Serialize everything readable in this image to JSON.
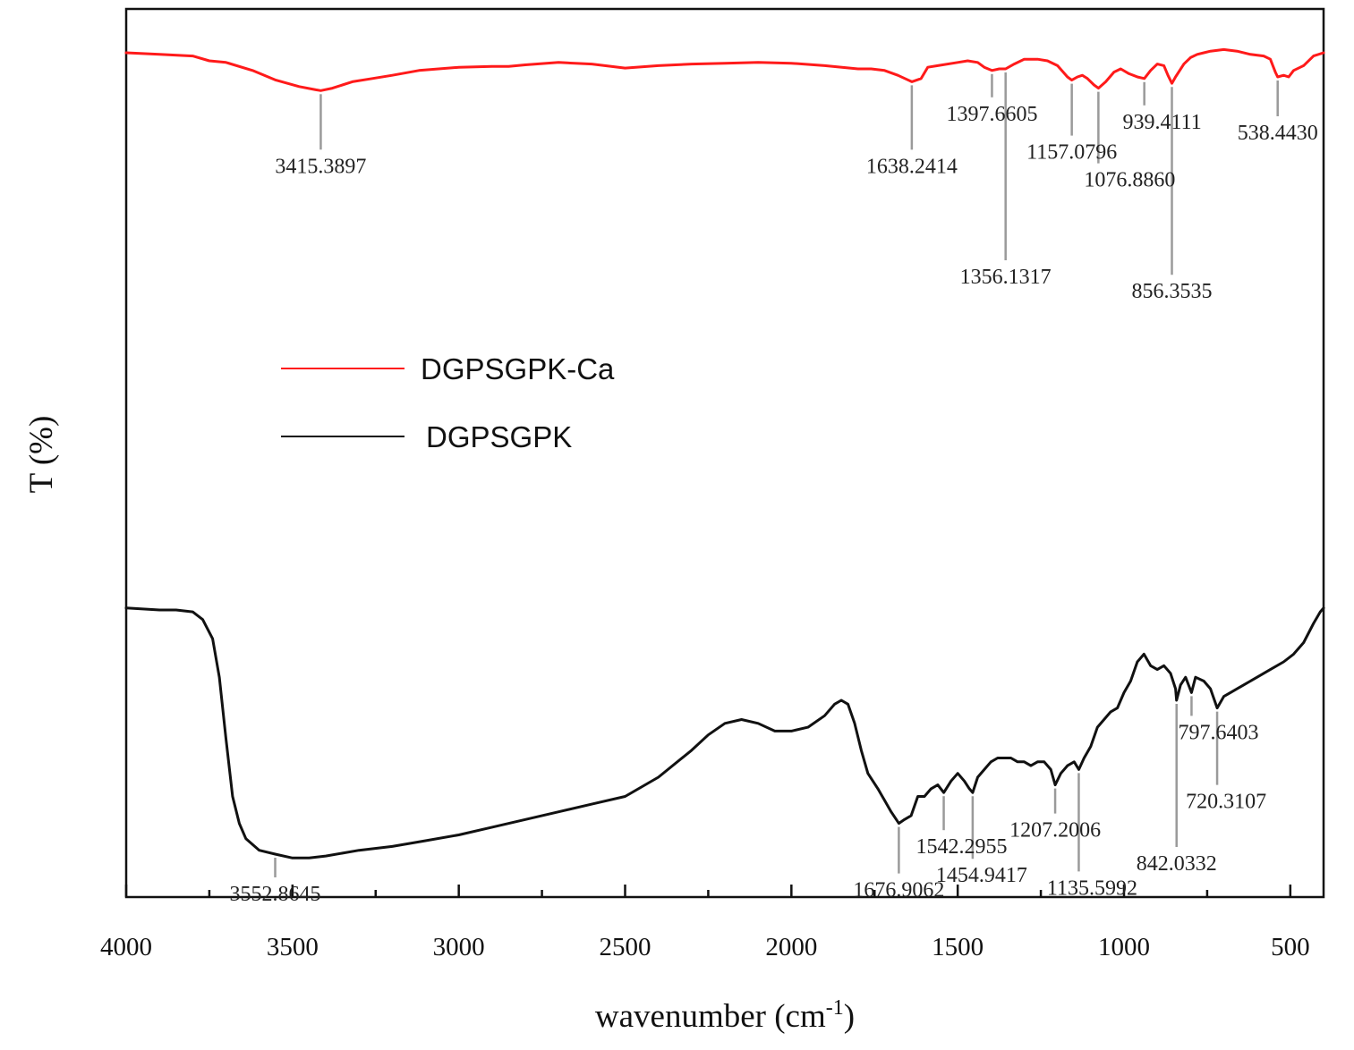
{
  "chart_data": {
    "type": "line",
    "xlabel": "wavenumber (cm",
    "xlabel_sup": "-1",
    "xlabel_close": ")",
    "ylabel": "T (%)",
    "xlim": [
      4000,
      400
    ],
    "x_reversed": true,
    "xticks": [
      4000,
      3500,
      3000,
      2500,
      2000,
      1500,
      1000,
      500
    ],
    "y_units": "relative transmittance (offset traces), 0-100 scale",
    "legend": {
      "position": "middle-left"
    },
    "series": [
      {
        "name": "DGPSGPK-Ca",
        "color": "#ff1a1a",
        "points": [
          [
            4000,
            95
          ],
          [
            3900,
            94
          ],
          [
            3800,
            93
          ],
          [
            3750,
            90
          ],
          [
            3700,
            89
          ],
          [
            3620,
            84
          ],
          [
            3550,
            78
          ],
          [
            3480,
            74
          ],
          [
            3430,
            72
          ],
          [
            3415,
            71.5
          ],
          [
            3380,
            73
          ],
          [
            3320,
            77
          ],
          [
            3260,
            79
          ],
          [
            3200,
            81
          ],
          [
            3120,
            84
          ],
          [
            3000,
            86
          ],
          [
            2900,
            86.5
          ],
          [
            2850,
            86.5
          ],
          [
            2800,
            87.5
          ],
          [
            2700,
            89
          ],
          [
            2600,
            88
          ],
          [
            2500,
            85.5
          ],
          [
            2400,
            87
          ],
          [
            2300,
            88
          ],
          [
            2200,
            88.5
          ],
          [
            2100,
            89
          ],
          [
            2000,
            88.5
          ],
          [
            1900,
            87
          ],
          [
            1800,
            85
          ],
          [
            1760,
            85
          ],
          [
            1720,
            84
          ],
          [
            1680,
            81
          ],
          [
            1638,
            77
          ],
          [
            1610,
            79
          ],
          [
            1590,
            86
          ],
          [
            1560,
            87
          ],
          [
            1500,
            89
          ],
          [
            1470,
            90
          ],
          [
            1440,
            89
          ],
          [
            1420,
            86
          ],
          [
            1397,
            84
          ],
          [
            1375,
            85
          ],
          [
            1356,
            85
          ],
          [
            1330,
            88
          ],
          [
            1300,
            91
          ],
          [
            1260,
            91
          ],
          [
            1230,
            90
          ],
          [
            1200,
            87
          ],
          [
            1170,
            80
          ],
          [
            1157,
            78
          ],
          [
            1140,
            80
          ],
          [
            1125,
            81
          ],
          [
            1110,
            79
          ],
          [
            1090,
            75
          ],
          [
            1077,
            73
          ],
          [
            1055,
            77
          ],
          [
            1030,
            83
          ],
          [
            1010,
            85
          ],
          [
            985,
            82
          ],
          [
            960,
            80
          ],
          [
            939,
            79
          ],
          [
            920,
            84
          ],
          [
            900,
            88
          ],
          [
            880,
            87
          ],
          [
            868,
            81
          ],
          [
            856,
            76
          ],
          [
            845,
            80
          ],
          [
            820,
            88
          ],
          [
            800,
            92
          ],
          [
            780,
            94
          ],
          [
            760,
            95
          ],
          [
            740,
            96
          ],
          [
            700,
            97
          ],
          [
            660,
            96
          ],
          [
            620,
            94
          ],
          [
            580,
            93
          ],
          [
            560,
            91
          ],
          [
            545,
            83
          ],
          [
            538,
            80
          ],
          [
            520,
            81
          ],
          [
            505,
            80
          ],
          [
            490,
            84
          ],
          [
            470,
            86
          ],
          [
            460,
            87
          ],
          [
            430,
            93
          ],
          [
            400,
            95
          ]
        ]
      },
      {
        "name": "DGPSGPK",
        "color": "#111111",
        "points": [
          [
            4000,
            64
          ],
          [
            3900,
            63.5
          ],
          [
            3850,
            63.5
          ],
          [
            3800,
            63
          ],
          [
            3770,
            61
          ],
          [
            3740,
            56
          ],
          [
            3720,
            46
          ],
          [
            3700,
            30
          ],
          [
            3680,
            15
          ],
          [
            3660,
            8
          ],
          [
            3640,
            4
          ],
          [
            3600,
            1
          ],
          [
            3552,
            0
          ],
          [
            3500,
            -1
          ],
          [
            3450,
            -1
          ],
          [
            3400,
            -0.5
          ],
          [
            3300,
            1
          ],
          [
            3200,
            2
          ],
          [
            3100,
            3.5
          ],
          [
            3000,
            5
          ],
          [
            2900,
            7
          ],
          [
            2800,
            9
          ],
          [
            2700,
            11
          ],
          [
            2600,
            13
          ],
          [
            2500,
            15
          ],
          [
            2400,
            20
          ],
          [
            2300,
            27
          ],
          [
            2250,
            31
          ],
          [
            2200,
            34
          ],
          [
            2150,
            35
          ],
          [
            2100,
            34
          ],
          [
            2050,
            32
          ],
          [
            2000,
            32
          ],
          [
            1950,
            33
          ],
          [
            1900,
            36
          ],
          [
            1870,
            39
          ],
          [
            1850,
            40
          ],
          [
            1830,
            39
          ],
          [
            1810,
            34
          ],
          [
            1790,
            27
          ],
          [
            1770,
            21
          ],
          [
            1740,
            17
          ],
          [
            1720,
            14
          ],
          [
            1700,
            11
          ],
          [
            1677,
            8
          ],
          [
            1660,
            9
          ],
          [
            1640,
            10
          ],
          [
            1620,
            15
          ],
          [
            1600,
            15
          ],
          [
            1580,
            17
          ],
          [
            1560,
            18
          ],
          [
            1542,
            16
          ],
          [
            1520,
            19
          ],
          [
            1500,
            21
          ],
          [
            1480,
            19
          ],
          [
            1465,
            17
          ],
          [
            1455,
            16
          ],
          [
            1440,
            20
          ],
          [
            1420,
            22
          ],
          [
            1400,
            24
          ],
          [
            1380,
            25
          ],
          [
            1360,
            25
          ],
          [
            1340,
            25
          ],
          [
            1320,
            24
          ],
          [
            1300,
            24
          ],
          [
            1280,
            23
          ],
          [
            1260,
            24
          ],
          [
            1240,
            24
          ],
          [
            1220,
            22
          ],
          [
            1207,
            18
          ],
          [
            1190,
            21
          ],
          [
            1170,
            23
          ],
          [
            1150,
            24
          ],
          [
            1136,
            22
          ],
          [
            1120,
            25
          ],
          [
            1100,
            28
          ],
          [
            1080,
            33
          ],
          [
            1060,
            35
          ],
          [
            1040,
            37
          ],
          [
            1020,
            38
          ],
          [
            1000,
            42
          ],
          [
            980,
            45
          ],
          [
            960,
            50
          ],
          [
            940,
            52
          ],
          [
            920,
            49
          ],
          [
            900,
            48
          ],
          [
            880,
            49
          ],
          [
            860,
            47
          ],
          [
            845,
            43
          ],
          [
            842,
            40
          ],
          [
            830,
            44
          ],
          [
            815,
            46
          ],
          [
            797,
            42
          ],
          [
            785,
            46
          ],
          [
            760,
            45
          ],
          [
            740,
            43
          ],
          [
            720,
            38
          ],
          [
            700,
            41
          ],
          [
            680,
            42
          ],
          [
            660,
            43
          ],
          [
            640,
            44
          ],
          [
            600,
            46
          ],
          [
            560,
            48
          ],
          [
            520,
            50
          ],
          [
            490,
            52
          ],
          [
            460,
            55
          ],
          [
            430,
            60
          ],
          [
            410,
            63
          ],
          [
            400,
            64
          ]
        ]
      }
    ],
    "peak_annotations": [
      {
        "series": "DGPSGPK-Ca",
        "x": 3415,
        "label": "3415.3897",
        "text_position": "below"
      },
      {
        "series": "DGPSGPK-Ca",
        "x": 1638,
        "label": "1638.2414",
        "text_position": "below"
      },
      {
        "series": "DGPSGPK-Ca",
        "x": 1397,
        "label": "1397.6605",
        "text_position": "below"
      },
      {
        "series": "DGPSGPK-Ca",
        "x": 1356,
        "label": "1356.1317",
        "text_position": "below"
      },
      {
        "series": "DGPSGPK-Ca",
        "x": 1157,
        "label": "1157.0796",
        "text_position": "below"
      },
      {
        "series": "DGPSGPK-Ca",
        "x": 1077,
        "label": "1076.8860",
        "text_position": "below"
      },
      {
        "series": "DGPSGPK-Ca",
        "x": 939,
        "label": "939.4111",
        "text_position": "below"
      },
      {
        "series": "DGPSGPK-Ca",
        "x": 856,
        "label": "856.3535",
        "text_position": "below"
      },
      {
        "series": "DGPSGPK-Ca",
        "x": 538,
        "label": "538.4430",
        "text_position": "below"
      },
      {
        "series": "DGPSGPK",
        "x": 3552,
        "label": "3552.8645",
        "text_position": "below"
      },
      {
        "series": "DGPSGPK",
        "x": 1677,
        "label": "1676.9062",
        "text_position": "below"
      },
      {
        "series": "DGPSGPK",
        "x": 1542,
        "label": "1542.2955",
        "text_position": "below"
      },
      {
        "series": "DGPSGPK",
        "x": 1455,
        "label": "1454.9417",
        "text_position": "below"
      },
      {
        "series": "DGPSGPK",
        "x": 1207,
        "label": "1207.2006",
        "text_position": "below"
      },
      {
        "series": "DGPSGPK",
        "x": 1136,
        "label": "1135.5992",
        "text_position": "below"
      },
      {
        "series": "DGPSGPK",
        "x": 842,
        "label": "842.0332",
        "text_position": "below"
      },
      {
        "series": "DGPSGPK",
        "x": 797,
        "label": "797.6403",
        "text_position": "below"
      },
      {
        "series": "DGPSGPK",
        "x": 720,
        "label": "720.3107",
        "text_position": "below"
      }
    ]
  }
}
